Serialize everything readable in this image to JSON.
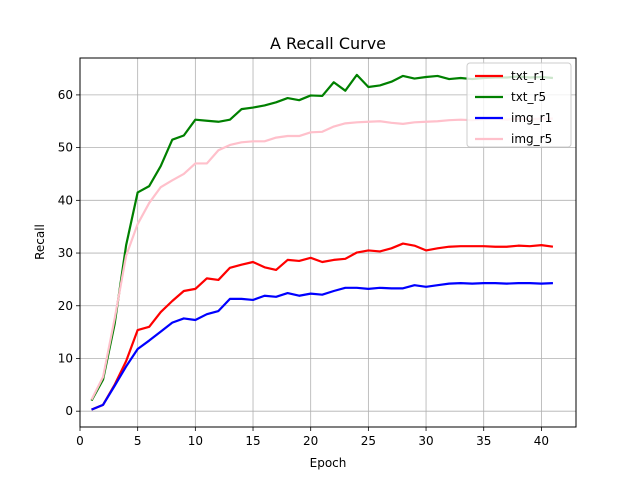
{
  "chart_data": {
    "type": "line",
    "title": "A Recall Curve",
    "xlabel": "Epoch",
    "ylabel": "Recall",
    "xlim": [
      -0.0,
      43.0
    ],
    "ylim": [
      -3.0,
      67.0
    ],
    "xticks": [
      0,
      5,
      10,
      15,
      20,
      25,
      30,
      35,
      40
    ],
    "yticks": [
      0,
      10,
      20,
      30,
      40,
      50,
      60
    ],
    "grid": true,
    "legend_position": "top-right",
    "x": [
      1,
      2,
      3,
      4,
      5,
      6,
      7,
      8,
      9,
      10,
      11,
      12,
      13,
      14,
      15,
      16,
      17,
      18,
      19,
      20,
      21,
      22,
      23,
      24,
      25,
      26,
      27,
      28,
      29,
      30,
      31,
      32,
      33,
      34,
      35,
      36,
      37,
      38,
      39,
      40,
      41
    ],
    "series": [
      {
        "name": "txt_r1",
        "color": "#ff0000",
        "values": [
          0.3,
          1.2,
          5.0,
          9.5,
          15.4,
          16.0,
          18.8,
          20.9,
          22.8,
          23.2,
          25.2,
          24.9,
          27.2,
          27.8,
          28.3,
          27.3,
          26.8,
          28.7,
          28.5,
          29.1,
          28.3,
          28.7,
          28.9,
          30.1,
          30.5,
          30.3,
          30.9,
          31.8,
          31.4,
          30.5,
          30.9,
          31.2,
          31.3,
          31.3,
          31.3,
          31.2,
          31.2,
          31.4,
          31.3,
          31.5,
          31.2
        ]
      },
      {
        "name": "txt_r5",
        "color": "#008000",
        "values": [
          2.0,
          6.0,
          16.5,
          31.5,
          41.5,
          42.7,
          46.5,
          51.5,
          52.3,
          55.3,
          55.1,
          54.9,
          55.3,
          57.3,
          57.6,
          58.0,
          58.6,
          59.4,
          59.0,
          59.9,
          59.8,
          62.4,
          60.8,
          63.8,
          61.5,
          61.8,
          62.5,
          63.6,
          63.1,
          63.4,
          63.6,
          63.0,
          63.2,
          63.0,
          63.2,
          63.3,
          63.3,
          63.5,
          63.3,
          63.4,
          63.2
        ]
      },
      {
        "name": "img_r1",
        "color": "#0000ff",
        "values": [
          0.3,
          1.2,
          4.8,
          8.5,
          11.8,
          13.4,
          15.1,
          16.8,
          17.6,
          17.3,
          18.4,
          19.0,
          21.3,
          21.3,
          21.1,
          21.9,
          21.7,
          22.4,
          21.9,
          22.3,
          22.1,
          22.8,
          23.4,
          23.4,
          23.2,
          23.4,
          23.3,
          23.3,
          23.9,
          23.6,
          23.9,
          24.2,
          24.3,
          24.2,
          24.3,
          24.3,
          24.2,
          24.3,
          24.3,
          24.2,
          24.3
        ]
      },
      {
        "name": "img_r5",
        "color": "#ffc0cb",
        "values": [
          2.2,
          6.5,
          17.5,
          29.5,
          35.5,
          39.5,
          42.5,
          43.8,
          45.0,
          47.0,
          47.0,
          49.5,
          50.5,
          51.0,
          51.2,
          51.2,
          51.9,
          52.2,
          52.2,
          52.9,
          53.0,
          54.0,
          54.6,
          54.8,
          54.9,
          55.0,
          54.7,
          54.5,
          54.8,
          54.9,
          55.0,
          55.2,
          55.3,
          55.2,
          55.4,
          55.5,
          55.3,
          55.5,
          55.4,
          55.5,
          55.5
        ]
      }
    ]
  }
}
